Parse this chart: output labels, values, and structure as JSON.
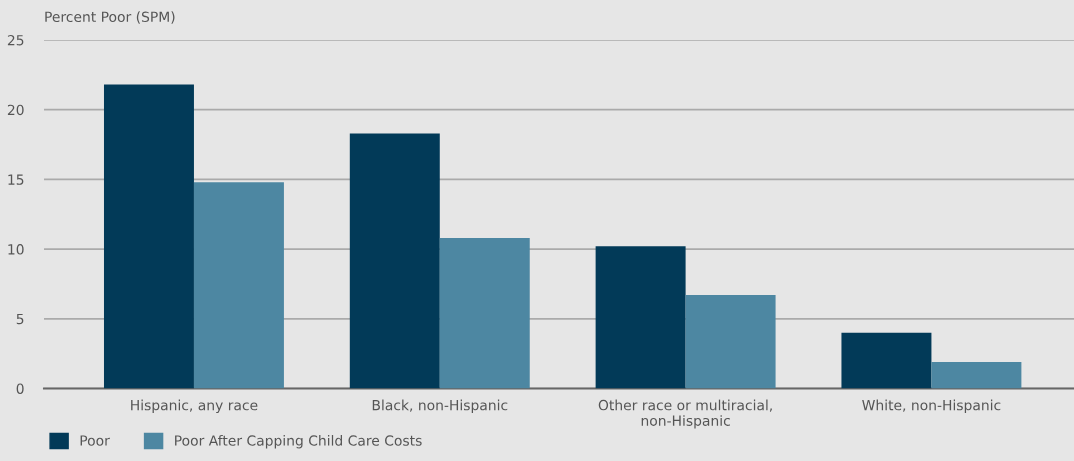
{
  "chart_data": {
    "type": "bar",
    "ylabel": "Percent Poor (SPM)",
    "categories": [
      "Hispanic, any race",
      "Black, non-Hispanic",
      "Other race or multiracial,\nnon-Hispanic",
      "White, non-Hispanic"
    ],
    "series": [
      {
        "name": "Poor",
        "color": "#023a58",
        "values": [
          21.8,
          18.3,
          10.2,
          4.0
        ]
      },
      {
        "name": "Poor After Capping Child Care Costs",
        "color": "#4d87a2",
        "values": [
          14.8,
          10.8,
          6.7,
          1.9
        ]
      }
    ],
    "ylim": [
      0,
      25
    ],
    "yticks": [
      0,
      5,
      10,
      15,
      20,
      25
    ],
    "grid": "y",
    "legend": "bottom left"
  }
}
